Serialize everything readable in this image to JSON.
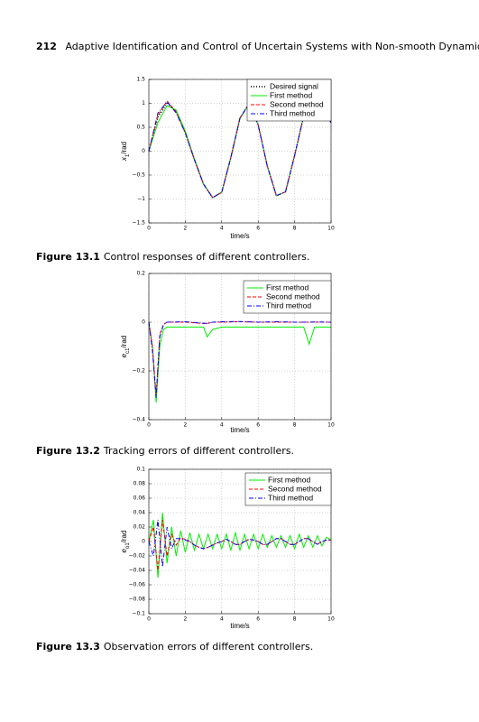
{
  "header": {
    "page_number": "212",
    "title": "Adaptive Identification and Control of Uncertain Systems with Non-smooth Dynamics"
  },
  "captions": [
    {
      "label": "Figure 13.1",
      "text": "Control responses of different controllers."
    },
    {
      "label": "Figure 13.2",
      "text": "Tracking errors of different controllers."
    },
    {
      "label": "Figure 13.3",
      "text": "Observation errors of different controllers."
    }
  ],
  "chart_data": [
    {
      "type": "line",
      "xlabel": "time/s",
      "ylabel": [
        "x",
        "1",
        "/rad"
      ],
      "grid": true,
      "legend": "upper right",
      "xlim": [
        0,
        10
      ],
      "xticks": [
        0,
        2,
        4,
        6,
        8,
        10
      ],
      "ylim": [
        -1.5,
        1.5
      ],
      "yticks": [
        {
          "value": -1.5,
          "label": "−1.5"
        },
        {
          "value": -1,
          "label": "−1"
        },
        {
          "value": -0.5,
          "label": "−0.5"
        },
        0,
        0.5,
        1,
        1.5
      ],
      "x": [
        0,
        0.5,
        1,
        1.5,
        2,
        2.5,
        3,
        3.5,
        4,
        4.5,
        5,
        5.5,
        6,
        6.5,
        7,
        7.5,
        8,
        8.5,
        9,
        9.5,
        10
      ],
      "series": [
        {
          "name": "Desired signal",
          "color": "#000000",
          "style": "dotted",
          "values": [
            0,
            0.71,
            1,
            0.835,
            0.396,
            -0.174,
            -0.687,
            -0.973,
            -0.858,
            -0.134,
            0.691,
            0.996,
            0.551,
            -0.309,
            -0.935,
            -0.85,
            -0.092,
            0.74,
            0.983,
            0.85,
            0.6
          ]
        },
        {
          "name": "First method",
          "color": "#00ee00",
          "style": "solid",
          "values": [
            0,
            0.6,
            0.95,
            0.86,
            0.42,
            -0.16,
            -0.68,
            -0.97,
            -0.86,
            -0.14,
            0.68,
            0.99,
            0.55,
            -0.31,
            -0.93,
            -0.85,
            -0.09,
            0.73,
            0.98,
            0.85,
            0.6
          ]
        },
        {
          "name": "Second method",
          "color": "#ff0000",
          "style": "dashed",
          "values": [
            0,
            0.75,
            1.05,
            0.82,
            0.38,
            -0.18,
            -0.69,
            -0.97,
            -0.86,
            -0.13,
            0.69,
            0.99,
            0.55,
            -0.31,
            -0.93,
            -0.85,
            -0.09,
            0.74,
            0.98,
            0.85,
            0.6
          ]
        },
        {
          "name": "Third method",
          "color": "#0000ff",
          "style": "dashdot",
          "values": [
            0,
            0.8,
            1.03,
            0.8,
            0.38,
            -0.18,
            -0.69,
            -0.97,
            -0.86,
            -0.13,
            0.69,
            0.99,
            0.55,
            -0.31,
            -0.93,
            -0.85,
            -0.09,
            0.74,
            0.98,
            0.85,
            0.6
          ]
        }
      ]
    },
    {
      "type": "line",
      "xlabel": "time/s",
      "ylabel": [
        "e",
        "c1",
        "/rad"
      ],
      "grid": true,
      "legend": "upper right",
      "xlim": [
        0,
        10
      ],
      "xticks": [
        0,
        2,
        4,
        6,
        8,
        10
      ],
      "ylim": [
        -0.4,
        0.2
      ],
      "yticks": [
        {
          "value": -0.4,
          "label": "−0.4"
        },
        {
          "value": -0.2,
          "label": "−0.2"
        },
        0,
        0.2
      ],
      "x": [
        0,
        0.2,
        0.4,
        0.6,
        0.8,
        1,
        2,
        3,
        3.2,
        3.5,
        4,
        5,
        6,
        7,
        8,
        8.5,
        8.8,
        9.1,
        10
      ],
      "series": [
        {
          "name": "First method",
          "color": "#00ee00",
          "style": "solid",
          "values": [
            0,
            -0.1,
            -0.33,
            -0.1,
            -0.03,
            -0.02,
            -0.02,
            -0.02,
            -0.06,
            -0.03,
            -0.02,
            -0.02,
            -0.02,
            -0.02,
            -0.02,
            -0.02,
            -0.09,
            -0.02,
            -0.02
          ]
        },
        {
          "name": "Second method",
          "color": "#ff0000",
          "style": "dashed",
          "values": [
            0,
            -0.1,
            -0.3,
            -0.05,
            -0.01,
            0,
            0,
            -0.005,
            -0.005,
            0,
            0,
            0.002,
            0,
            0,
            0,
            0,
            0,
            0,
            0
          ]
        },
        {
          "name": "Third method",
          "color": "#0000ff",
          "style": "dashdot",
          "values": [
            0,
            -0.12,
            -0.31,
            -0.06,
            -0.01,
            0,
            0.002,
            -0.004,
            -0.005,
            0,
            0.002,
            0.003,
            0,
            0.002,
            0,
            0,
            0,
            0.001,
            0
          ]
        }
      ]
    },
    {
      "type": "line",
      "xlabel": "time/s",
      "ylabel": [
        "e",
        "o1",
        "/rad"
      ],
      "grid": true,
      "legend": "upper right",
      "xlim": [
        0,
        10
      ],
      "xticks": [
        0,
        2,
        4,
        6,
        8,
        10
      ],
      "ylim": [
        -0.1,
        0.1
      ],
      "yticks": [
        {
          "value": -0.1,
          "label": "−0.1"
        },
        {
          "value": -0.08,
          "label": "−0.08"
        },
        {
          "value": -0.06,
          "label": "−0.06"
        },
        {
          "value": -0.04,
          "label": "−0.04"
        },
        {
          "value": -0.02,
          "label": "−0.02"
        },
        0,
        0.02,
        0.04,
        0.06,
        0.08,
        0.1
      ],
      "x": [
        0,
        0.25,
        0.5,
        0.75,
        1,
        1.25,
        1.5,
        1.75,
        2,
        2.25,
        2.5,
        2.75,
        3,
        3.25,
        3.5,
        3.75,
        4,
        4.25,
        4.5,
        4.75,
        5,
        5.25,
        5.5,
        5.75,
        6,
        6.25,
        6.5,
        6.75,
        7,
        7.25,
        7.5,
        7.75,
        8,
        8.25,
        8.5,
        8.75,
        9,
        9.25,
        9.5,
        9.75,
        10
      ],
      "series": [
        {
          "name": "First method",
          "color": "#00ee00",
          "style": "solid",
          "values": [
            0,
            0.03,
            -0.05,
            0.04,
            -0.03,
            0.02,
            -0.02,
            0.015,
            -0.015,
            0.012,
            -0.012,
            0.01,
            -0.01,
            0.01,
            -0.01,
            0.01,
            -0.01,
            0.01,
            -0.012,
            0.012,
            -0.012,
            0.01,
            -0.01,
            0.01,
            -0.01,
            0.01,
            -0.008,
            0.008,
            -0.008,
            0.008,
            -0.008,
            0.008,
            -0.01,
            0.01,
            -0.008,
            0.008,
            -0.008,
            0.008,
            -0.006,
            0.006,
            0.002
          ]
        },
        {
          "name": "Second method",
          "color": "#ff0000",
          "style": "dashed",
          "values": [
            0,
            0.02,
            -0.04,
            0.03,
            -0.02,
            0.01,
            -0.005,
            0.005,
            0.003,
            0,
            -0.005,
            -0.008,
            -0.01,
            -0.008,
            -0.005,
            -0.002,
            0,
            0.003,
            0,
            -0.004,
            -0.004,
            0,
            0.003,
            0.002,
            0,
            -0.004,
            -0.004,
            0,
            0.004,
            0.004,
            0,
            -0.004,
            -0.004,
            0,
            0.004,
            0.004,
            0,
            -0.004,
            0,
            0.002,
            0.002
          ]
        },
        {
          "name": "Third method",
          "color": "#0000ff",
          "style": "dashdot",
          "values": [
            0,
            -0.02,
            0.03,
            -0.035,
            0.02,
            -0.01,
            0.004,
            0.004,
            0.002,
            0,
            -0.005,
            -0.008,
            -0.01,
            -0.008,
            -0.005,
            -0.002,
            0,
            0.003,
            0,
            -0.004,
            -0.004,
            0,
            0.003,
            0.002,
            0,
            -0.004,
            -0.004,
            0,
            0.004,
            0.004,
            0,
            -0.004,
            -0.004,
            0,
            0.004,
            0.004,
            0,
            -0.004,
            0,
            0.002,
            0.002
          ]
        }
      ]
    }
  ]
}
